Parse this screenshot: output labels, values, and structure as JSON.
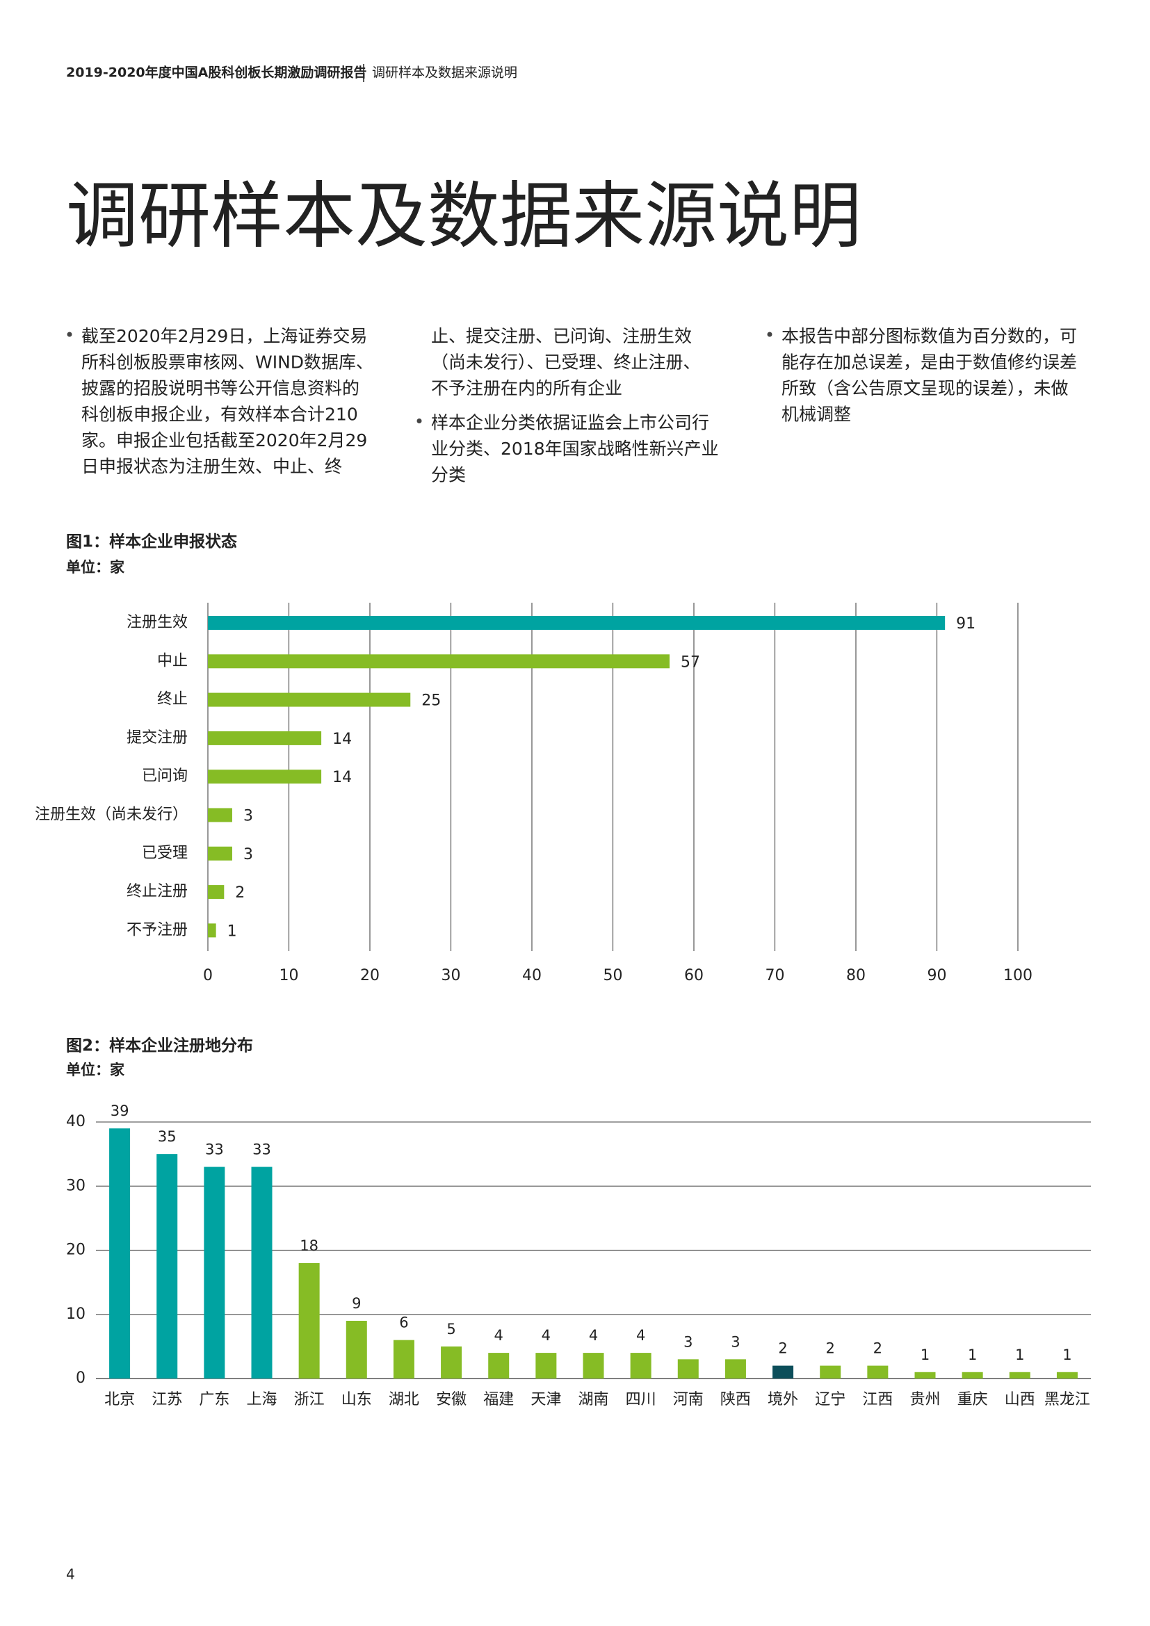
{
  "header": {
    "title": "2019-2020年度中国A股科创板长期激励调研报告",
    "section": "调研样本及数据来源说明"
  },
  "title": "调研样本及数据来源说明",
  "columns": [
    [
      {
        "bullet": true,
        "lines": [
          "截至2020年2月29日，上海证券交易",
          "所科创板股票审核网、WIND数据库、",
          "披露的招股说明书等公开信息资料的",
          "科创板申报企业，有效样本合计210",
          "家。申报企业包括截至2020年2月29",
          "日申报状态为注册生效、中止、终"
        ]
      }
    ],
    [
      {
        "bullet": false,
        "lines": [
          "止、提交注册、已问询、注册生效",
          "（尚未发行）、已受理、终止注册、",
          "不予注册在内的所有企业"
        ]
      },
      {
        "bullet": true,
        "lines": [
          "样本企业分类依据证监会上市公司行",
          "业分类、2018年国家战略性新兴产业",
          "分类"
        ]
      }
    ],
    [
      {
        "bullet": true,
        "lines": [
          "本报告中部分图标数值为百分数的，可",
          "能存在加总误差，是由于数值修约误差",
          "所致（含公告原文呈现的误差），未做",
          "机械调整"
        ]
      }
    ]
  ],
  "chart_data": [
    {
      "type": "hbar",
      "title": "图1：样本企业申报状态",
      "subtitle": "单位：家",
      "categories": [
        "注册生效",
        "中止",
        "终止",
        "提交注册",
        "已问询",
        "注册生效（尚未发行）",
        "已受理",
        "终止注册",
        "不予注册"
      ],
      "values": [
        91,
        57,
        25,
        14,
        14,
        3,
        3,
        2,
        1
      ],
      "colors": [
        "#00a3a1",
        "#86bc25",
        "#86bc25",
        "#86bc25",
        "#86bc25",
        "#86bc25",
        "#86bc25",
        "#86bc25",
        "#86bc25"
      ],
      "xlim": [
        0,
        100
      ],
      "xticks": [
        0,
        10,
        20,
        30,
        40,
        50,
        60,
        70,
        80,
        90,
        100
      ],
      "grid": true
    },
    {
      "type": "bar",
      "title": "图2：样本企业注册地分布",
      "subtitle": "单位：家",
      "categories": [
        "北京",
        "江苏",
        "广东",
        "上海",
        "浙江",
        "山东",
        "湖北",
        "安徽",
        "福建",
        "天津",
        "湖南",
        "四川",
        "河南",
        "陕西",
        "境外",
        "辽宁",
        "江西",
        "贵州",
        "重庆",
        "山西",
        "黑龙江"
      ],
      "values": [
        39,
        35,
        33,
        33,
        18,
        9,
        6,
        5,
        4,
        4,
        4,
        4,
        3,
        3,
        2,
        2,
        2,
        1,
        1,
        1,
        1
      ],
      "colors": [
        "#00a3a1",
        "#00a3a1",
        "#00a3a1",
        "#00a3a1",
        "#86bc25",
        "#86bc25",
        "#86bc25",
        "#86bc25",
        "#86bc25",
        "#86bc25",
        "#86bc25",
        "#86bc25",
        "#86bc25",
        "#86bc25",
        "#0c4e5a",
        "#86bc25",
        "#86bc25",
        "#86bc25",
        "#86bc25",
        "#86bc25",
        "#86bc25"
      ],
      "ylim": [
        0,
        40
      ],
      "yticks": [
        0,
        10,
        20,
        30,
        40
      ],
      "grid": true
    }
  ],
  "page_number": "4"
}
